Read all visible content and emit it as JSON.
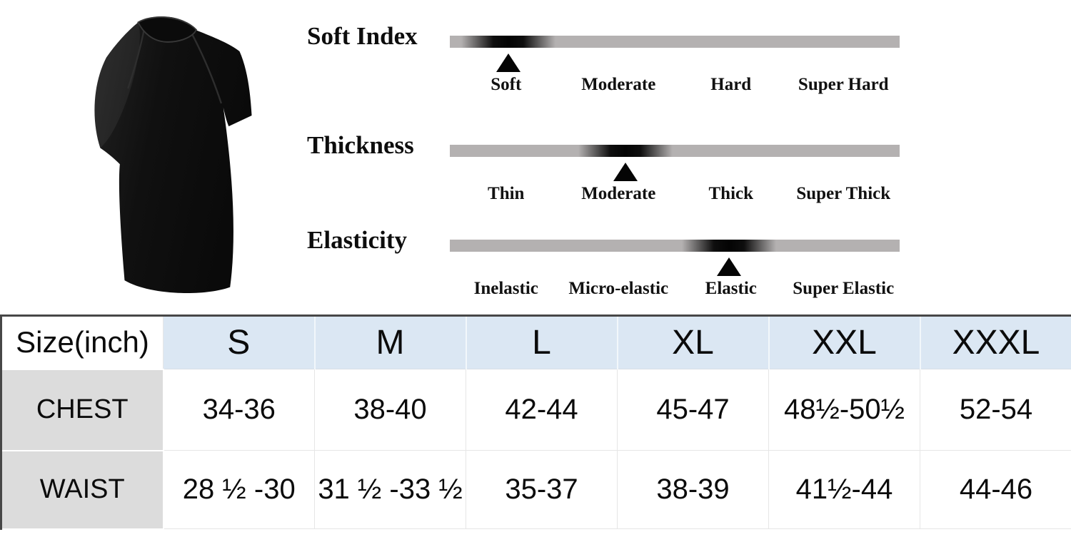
{
  "colors": {
    "bar_gray": "#b4b1b1",
    "marker_black": "#000000",
    "table_header_blue": "#dbe7f3",
    "row_label_gray": "#dcdcdc",
    "table_border_dark": "#474747",
    "table_border_light": "#e6e6e6",
    "shirt_black": "#131313"
  },
  "chart_data": [
    {
      "type": "scale",
      "title": "Soft Index",
      "categories": [
        "Soft",
        "Moderate",
        "Hard",
        "Super Hard"
      ],
      "selected": "Soft",
      "marker_pct": 13
    },
    {
      "type": "scale",
      "title": "Thickness",
      "categories": [
        "Thin",
        "Moderate",
        "Thick",
        "Super Thick"
      ],
      "selected": "Moderate",
      "marker_pct": 39
    },
    {
      "type": "scale",
      "title": "Elasticity",
      "categories": [
        "Inelastic",
        "Micro-elastic",
        "Elastic",
        "Super Elastic"
      ],
      "selected": "Elastic",
      "marker_pct": 62
    },
    {
      "type": "table",
      "header": [
        "Size(inch)",
        "S",
        "M",
        "L",
        "XL",
        "XXL",
        "XXXL"
      ],
      "rows": [
        {
          "label": "CHEST",
          "values": [
            "34-36",
            "38-40",
            "42-44",
            "45-47",
            "48½-50½",
            "52-54"
          ]
        },
        {
          "label": "WAIST",
          "values": [
            "28 ½ -30",
            "31 ½ -33 ½",
            "35-37",
            "38-39",
            "41½-44",
            "44-46"
          ]
        }
      ]
    }
  ]
}
